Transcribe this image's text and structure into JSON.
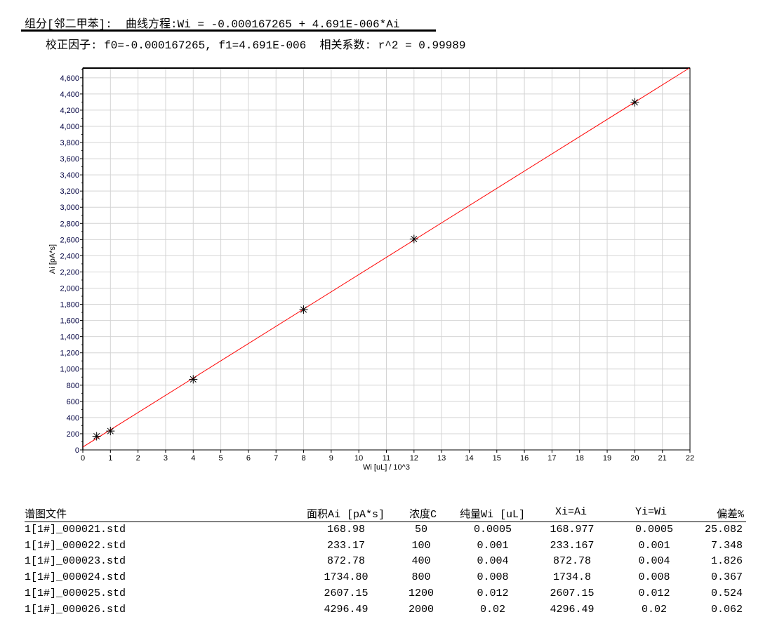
{
  "header": {
    "line1": "组分[邻二甲苯]:  曲线方程:Wi = -0.000167265 + 4.691E-006*Ai",
    "line2": "校正因子: f0=-0.000167265, f1=4.691E-006  相关系数: r^2 = 0.99989"
  },
  "chart_data": {
    "type": "scatter",
    "title": "",
    "xlabel": "Wi [uL] / 10^3",
    "ylabel": "Ai [pA*s]",
    "xlim": [
      0,
      22
    ],
    "ylim": [
      0,
      4720
    ],
    "x_ticks": [
      0,
      1,
      2,
      3,
      4,
      5,
      6,
      7,
      8,
      9,
      10,
      11,
      12,
      13,
      14,
      15,
      16,
      17,
      18,
      19,
      20,
      21,
      22
    ],
    "y_ticks": [
      0,
      200,
      400,
      600,
      800,
      1000,
      1200,
      1400,
      1600,
      1800,
      2000,
      2200,
      2400,
      2600,
      2800,
      3000,
      3200,
      3400,
      3600,
      3800,
      4000,
      4200,
      4400,
      4600
    ],
    "grid": true,
    "points": {
      "x": [
        0.5,
        1,
        4,
        8,
        12,
        20
      ],
      "y": [
        168.98,
        233.17,
        872.78,
        1734.8,
        2607.15,
        4296.49
      ],
      "marker": "asterisk",
      "color": "#000000"
    },
    "fit_line": {
      "f0": -0.000167265,
      "f1": 4.691e-06,
      "color": "#ff0000"
    }
  },
  "table": {
    "headers": [
      "谱图文件",
      "面积Ai [pA*s]",
      "浓度C",
      "纯量Wi [uL]",
      "Xi=Ai",
      "Yi=Wi",
      "偏差%"
    ],
    "rows": [
      [
        "1[1#]_000021.std",
        "168.98",
        "50",
        "0.0005",
        "168.977",
        "0.0005",
        "25.082"
      ],
      [
        "1[1#]_000022.std",
        "233.17",
        "100",
        "0.001",
        "233.167",
        "0.001",
        "7.348"
      ],
      [
        "1[1#]_000023.std",
        "872.78",
        "400",
        "0.004",
        "872.78",
        "0.004",
        "1.826"
      ],
      [
        "1[1#]_000024.std",
        "1734.80",
        "800",
        "0.008",
        "1734.8",
        "0.008",
        "0.367"
      ],
      [
        "1[1#]_000025.std",
        "2607.15",
        "1200",
        "0.012",
        "2607.15",
        "0.012",
        "0.524"
      ],
      [
        "1[1#]_000026.std",
        "4296.49",
        "2000",
        "0.02",
        "4296.49",
        "0.02",
        "0.062"
      ]
    ]
  }
}
